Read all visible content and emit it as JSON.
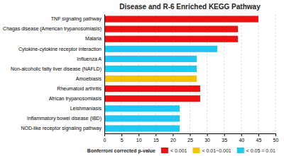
{
  "chart_data": {
    "type": "bar",
    "orientation": "horizontal",
    "title": "Disease and R-6 Enriched KEGG Pathway",
    "categories": [
      "NOD-like receptor signaling pathway",
      "Inflammatory bowel disease (IBD)",
      "Leishmaniasis",
      "African trypanosomiasis",
      "Rheumatoid arthritis",
      "Amoebiasis",
      "Non-alcoholic fatty liver disease (NAFLD)",
      "Influenza A",
      "Cytokine-cytokine receptor interaction",
      "Malaria",
      "Chagas disease (American trypanosomiasis)",
      "TNF signaling pathway"
    ],
    "values": [
      22,
      22,
      22,
      28,
      28,
      27,
      27,
      27,
      33,
      39,
      39,
      45
    ],
    "colors": [
      "#1EC8F0",
      "#1EC8F0",
      "#1EC8F0",
      "#EE1111",
      "#EE1111",
      "#F5C400",
      "#1EC8F0",
      "#1EC8F0",
      "#1EC8F0",
      "#EE1111",
      "#EE1111",
      "#EE1111"
    ],
    "xlim": [
      0,
      50
    ],
    "xticks": [
      0,
      5,
      10,
      15,
      20,
      25,
      30,
      35,
      40,
      45,
      50
    ],
    "grid": true,
    "legend": "lower right",
    "legend_title": "Bonferroni corrected p-value",
    "legend_items": [
      {
        "label": "< 0.001",
        "color": "#EE1111"
      },
      {
        "label": "< 0.01~0.001",
        "color": "#F5C400"
      },
      {
        "label": "< 0.05 = 0.01",
        "color": "#1EC8F0"
      }
    ]
  }
}
